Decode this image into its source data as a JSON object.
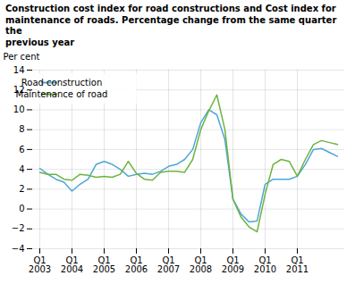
{
  "chart_data": {
    "type": "line",
    "title": "Construction cost index for road constructions and Cost index for\nmaintenance of roads. Percentage change from the same quarter the\nprevious year",
    "ylabel": "Per cent",
    "categories": [
      "Q1\n2003",
      null,
      null,
      null,
      "Q1\n2004",
      null,
      null,
      null,
      "Q1\n2005",
      null,
      null,
      null,
      "Q1\n2006",
      null,
      null,
      null,
      "Q1\n2007",
      null,
      null,
      null,
      "Q1\n2008",
      null,
      null,
      null,
      "Q1\n2009",
      null,
      null,
      null,
      "Q1\n2010",
      null,
      null,
      null,
      "Q1\n2011",
      null,
      null,
      null,
      null,
      null
    ],
    "series": [
      {
        "name": "Road construction",
        "color": "#4da6d9",
        "values": [
          4.1,
          3.5,
          3.0,
          2.7,
          1.8,
          2.5,
          3.0,
          4.5,
          4.8,
          4.5,
          4.0,
          3.3,
          3.5,
          3.6,
          3.5,
          3.8,
          4.3,
          4.5,
          5.0,
          6.0,
          8.7,
          10.0,
          9.5,
          7.0,
          1.0,
          -0.5,
          -1.3,
          -1.2,
          2.5,
          3.0,
          3.0,
          3.0,
          3.3,
          4.5,
          6.0,
          6.1,
          5.7,
          5.3
        ]
      },
      {
        "name": "Maintenance of road",
        "color": "#6db33f",
        "values": [
          3.7,
          3.5,
          3.5,
          3.0,
          2.9,
          3.5,
          3.4,
          3.2,
          3.3,
          3.2,
          3.5,
          4.8,
          3.6,
          3.0,
          2.9,
          3.7,
          3.8,
          3.8,
          3.7,
          5.0,
          8.0,
          9.9,
          11.5,
          8.0,
          1.0,
          -0.8,
          -1.8,
          -2.3,
          1.5,
          4.5,
          5.0,
          4.8,
          3.3,
          5.0,
          6.5,
          6.9,
          6.7,
          6.5
        ]
      }
    ],
    "ylim": [
      -4,
      14
    ],
    "yticks": [
      -4,
      -2,
      0,
      2,
      4,
      6,
      8,
      10,
      12,
      14
    ],
    "grid": true,
    "legend": "upper left"
  }
}
